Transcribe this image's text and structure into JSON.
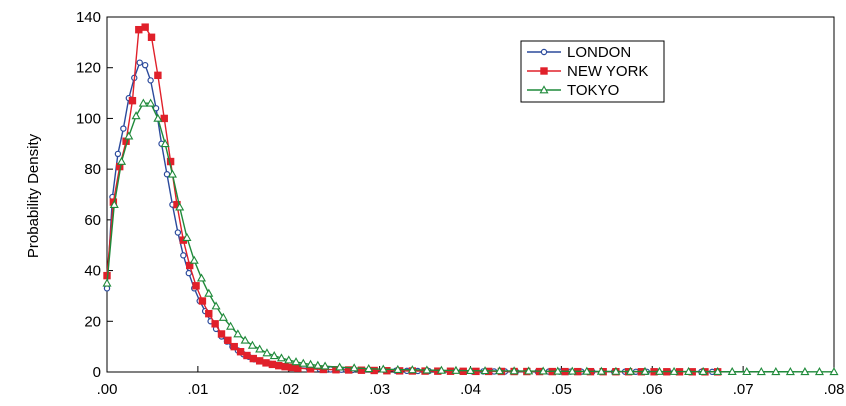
{
  "chart_data": {
    "type": "line",
    "title": "",
    "xlabel": "",
    "ylabel": "Probability Density",
    "xlim": [
      0,
      0.08
    ],
    "ylim": [
      0,
      140
    ],
    "x_ticks": [
      0,
      0.01,
      0.02,
      0.03,
      0.04,
      0.05,
      0.06,
      0.07,
      0.08
    ],
    "x_tick_labels": [
      ".00",
      ".01",
      ".02",
      ".03",
      ".04",
      ".05",
      ".06",
      ".07",
      ".08"
    ],
    "y_ticks": [
      0,
      20,
      40,
      60,
      80,
      100,
      120,
      140
    ],
    "y_tick_labels": [
      "0",
      "20",
      "40",
      "60",
      "80",
      "100",
      "120",
      "140"
    ],
    "grid": false,
    "legend_position": "top-right",
    "series": [
      {
        "name": "LONDON",
        "color": "#2b4a9c",
        "marker": "circle",
        "x": [
          0,
          0.0006,
          0.0012,
          0.0018,
          0.0024,
          0.003,
          0.0036,
          0.0042,
          0.0048,
          0.0054,
          0.006,
          0.0066,
          0.0072,
          0.0078,
          0.0084,
          0.009,
          0.0096,
          0.0102,
          0.0108,
          0.0114,
          0.012,
          0.0126,
          0.0132,
          0.0138,
          0.0144,
          0.015,
          0.0156,
          0.0162,
          0.0168,
          0.0174,
          0.018,
          0.0186,
          0.0192,
          0.0198,
          0.021,
          0.0222,
          0.0234,
          0.0246,
          0.0258,
          0.027,
          0.0282,
          0.0294,
          0.0306,
          0.0318,
          0.033,
          0.0342,
          0.0354,
          0.0366,
          0.0378,
          0.039,
          0.0402,
          0.0414,
          0.0426,
          0.0438,
          0.045,
          0.0462,
          0.0474,
          0.0486,
          0.0498,
          0.051,
          0.0522,
          0.0534,
          0.0546,
          0.0558,
          0.057,
          0.0582,
          0.0594,
          0.0606,
          0.0618,
          0.063,
          0.0642,
          0.0654,
          0.0666
        ],
        "y": [
          33,
          69,
          86,
          96,
          108,
          116,
          122,
          121,
          115,
          104,
          90,
          78,
          66,
          55,
          46,
          39,
          33,
          28,
          24,
          20,
          17,
          14,
          12,
          10,
          8.5,
          7,
          6,
          5,
          4.3,
          3.7,
          3.2,
          2.8,
          2.4,
          2.1,
          1.7,
          1.4,
          1.2,
          1.0,
          0.9,
          0.8,
          0.7,
          0.6,
          0.55,
          0.5,
          0.45,
          0.4,
          0.37,
          0.34,
          0.3,
          0.28,
          0.26,
          0.24,
          0.22,
          0.2,
          0.19,
          0.18,
          0.17,
          0.16,
          0.15,
          0.14,
          0.13,
          0.12,
          0.11,
          0.1,
          0.1,
          0.09,
          0.09,
          0.08,
          0.08,
          0.07,
          0.07,
          0.06,
          0.06
        ]
      },
      {
        "name": "NEW YORK",
        "color": "#e0202a",
        "marker": "square",
        "x": [
          0,
          0.0007,
          0.0014,
          0.0021,
          0.0028,
          0.0035,
          0.0042,
          0.0049,
          0.0056,
          0.0063,
          0.007,
          0.0077,
          0.0084,
          0.0091,
          0.0098,
          0.0105,
          0.0112,
          0.0119,
          0.0126,
          0.0133,
          0.014,
          0.0147,
          0.0154,
          0.0161,
          0.0168,
          0.0175,
          0.0182,
          0.0189,
          0.0196,
          0.0203,
          0.021,
          0.0224,
          0.0238,
          0.0252,
          0.0266,
          0.028,
          0.0294,
          0.0308,
          0.0322,
          0.0336,
          0.035,
          0.0364,
          0.0378,
          0.0392,
          0.0406,
          0.042,
          0.0434,
          0.0448,
          0.0462,
          0.0476,
          0.049,
          0.0504,
          0.0518,
          0.0532,
          0.0546,
          0.056,
          0.0574,
          0.0588,
          0.0602,
          0.0616,
          0.063,
          0.0644,
          0.0658,
          0.0672
        ],
        "y": [
          38,
          67,
          81,
          91,
          107,
          135,
          136,
          132,
          117,
          100,
          83,
          66,
          52,
          42,
          34,
          28,
          23,
          19,
          15,
          12.5,
          10,
          8,
          6.5,
          5.3,
          4.4,
          3.6,
          3.0,
          2.5,
          2.1,
          1.8,
          1.5,
          1.2,
          1.0,
          0.9,
          0.8,
          0.7,
          0.6,
          0.5,
          0.45,
          0.4,
          0.36,
          0.33,
          0.3,
          0.27,
          0.25,
          0.23,
          0.21,
          0.19,
          0.18,
          0.17,
          0.16,
          0.15,
          0.14,
          0.13,
          0.12,
          0.11,
          0.1,
          0.1,
          0.09,
          0.09,
          0.08,
          0.08,
          0.07,
          0.07
        ]
      },
      {
        "name": "TOKYO",
        "color": "#1f8a3a",
        "marker": "triangle",
        "x": [
          0,
          0.0008,
          0.0016,
          0.0024,
          0.0032,
          0.004,
          0.0048,
          0.0056,
          0.0064,
          0.0072,
          0.008,
          0.0088,
          0.0096,
          0.0104,
          0.0112,
          0.012,
          0.0128,
          0.0136,
          0.0144,
          0.0152,
          0.016,
          0.0168,
          0.0176,
          0.0184,
          0.0192,
          0.02,
          0.0208,
          0.0216,
          0.0224,
          0.0232,
          0.024,
          0.0256,
          0.0272,
          0.0288,
          0.0304,
          0.032,
          0.0336,
          0.0352,
          0.0368,
          0.0384,
          0.04,
          0.0416,
          0.0432,
          0.0448,
          0.0464,
          0.048,
          0.0496,
          0.0512,
          0.0528,
          0.0544,
          0.056,
          0.0576,
          0.0592,
          0.0608,
          0.0624,
          0.064,
          0.0656,
          0.0672,
          0.0688,
          0.0704,
          0.072,
          0.0736,
          0.0752,
          0.0768,
          0.0784,
          0.08
        ],
        "y": [
          35,
          66,
          83,
          93,
          101,
          106,
          106,
          100,
          90,
          78,
          65,
          53,
          44,
          37,
          31,
          26,
          21.5,
          18,
          15,
          12.5,
          10.5,
          9,
          7.5,
          6.4,
          5.5,
          4.7,
          4.0,
          3.4,
          3.0,
          2.6,
          2.3,
          1.9,
          1.6,
          1.3,
          1.1,
          0.95,
          0.85,
          0.75,
          0.65,
          0.58,
          0.52,
          0.47,
          0.43,
          0.39,
          0.36,
          0.33,
          0.3,
          0.28,
          0.26,
          0.24,
          0.22,
          0.2,
          0.19,
          0.18,
          0.17,
          0.16,
          0.15,
          0.14,
          0.13,
          0.12,
          0.11,
          0.1,
          0.1,
          0.09,
          0.09,
          0.08
        ]
      }
    ]
  }
}
